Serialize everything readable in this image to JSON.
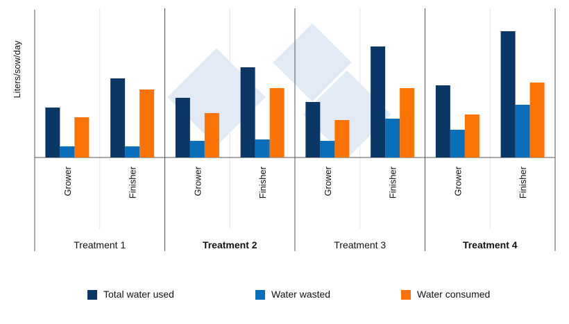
{
  "chart_data": {
    "type": "bar",
    "title": "",
    "xlabel": "",
    "ylabel": "Liters/sow/day",
    "ylim": [
      0,
      10.75
    ],
    "y_ticks_shown": false,
    "grid": false,
    "legend_position": "bottom",
    "groups": [
      {
        "label": "Treatment 1",
        "bold": false,
        "categories": [
          "Grower",
          "Finisher"
        ]
      },
      {
        "label": "Treatment 2",
        "bold": true,
        "categories": [
          "Grower",
          "Finisher"
        ]
      },
      {
        "label": "Treatment 3",
        "bold": false,
        "categories": [
          "Grower",
          "Finisher"
        ]
      },
      {
        "label": "Treatment 4",
        "bold": true,
        "categories": [
          "Grower",
          "Finisher"
        ]
      }
    ],
    "series": [
      {
        "name": "Total water used",
        "color": "#0a3765",
        "values": [
          3.6,
          5.7,
          4.3,
          6.5,
          4.0,
          8.0,
          5.2,
          9.1
        ]
      },
      {
        "name": "Water wasted",
        "color": "#0a6fba",
        "values": [
          0.8,
          0.8,
          1.2,
          1.3,
          1.2,
          2.8,
          2.0,
          3.8
        ]
      },
      {
        "name": "Water consumed",
        "color": "#fb7304",
        "values": [
          2.9,
          4.9,
          3.2,
          5.0,
          2.7,
          5.0,
          3.1,
          5.4
        ]
      }
    ]
  }
}
